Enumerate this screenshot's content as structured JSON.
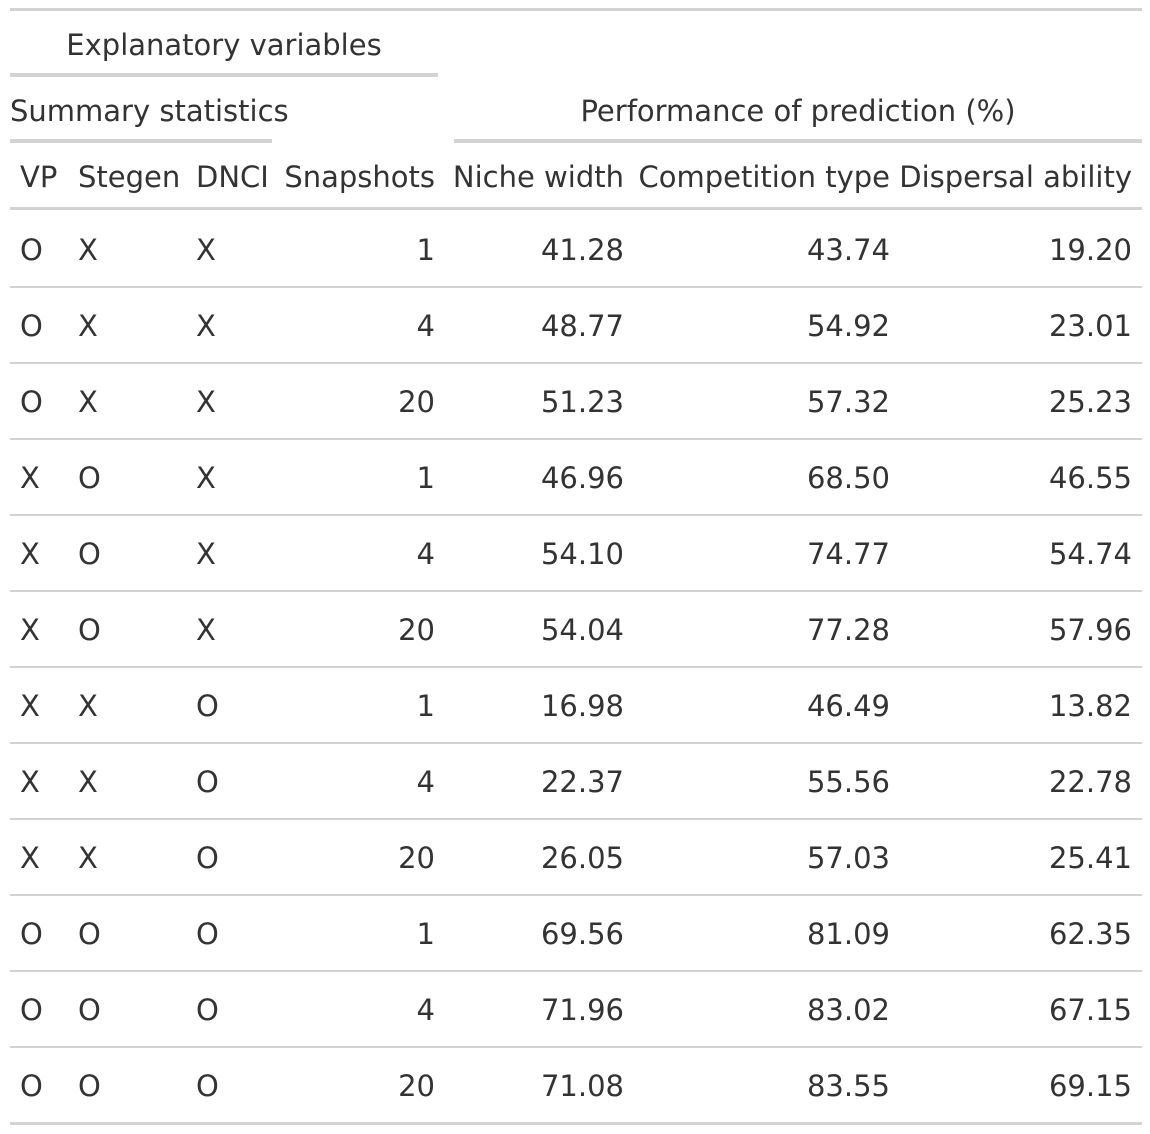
{
  "table": {
    "spanners": {
      "explanatory": "Explanatory variables",
      "summary": "Summary statistics",
      "performance": "Performance of prediction (%)"
    },
    "columns": [
      "VP",
      "Stegen",
      "DNCI",
      "Snapshots",
      "Niche width",
      "Competition type",
      "Dispersal ability"
    ],
    "rows": [
      [
        "O",
        "X",
        "X",
        "1",
        "41.28",
        "43.74",
        "19.20"
      ],
      [
        "O",
        "X",
        "X",
        "4",
        "48.77",
        "54.92",
        "23.01"
      ],
      [
        "O",
        "X",
        "X",
        "20",
        "51.23",
        "57.32",
        "25.23"
      ],
      [
        "X",
        "O",
        "X",
        "1",
        "46.96",
        "68.50",
        "46.55"
      ],
      [
        "X",
        "O",
        "X",
        "4",
        "54.10",
        "74.77",
        "54.74"
      ],
      [
        "X",
        "O",
        "X",
        "20",
        "54.04",
        "77.28",
        "57.96"
      ],
      [
        "X",
        "X",
        "O",
        "1",
        "16.98",
        "46.49",
        "13.82"
      ],
      [
        "X",
        "X",
        "O",
        "4",
        "22.37",
        "55.56",
        "22.78"
      ],
      [
        "X",
        "X",
        "O",
        "20",
        "26.05",
        "57.03",
        "25.41"
      ],
      [
        "O",
        "O",
        "O",
        "1",
        "69.56",
        "81.09",
        "62.35"
      ],
      [
        "O",
        "O",
        "O",
        "4",
        "71.96",
        "83.02",
        "67.15"
      ],
      [
        "O",
        "O",
        "O",
        "20",
        "71.08",
        "83.55",
        "69.15"
      ]
    ]
  }
}
